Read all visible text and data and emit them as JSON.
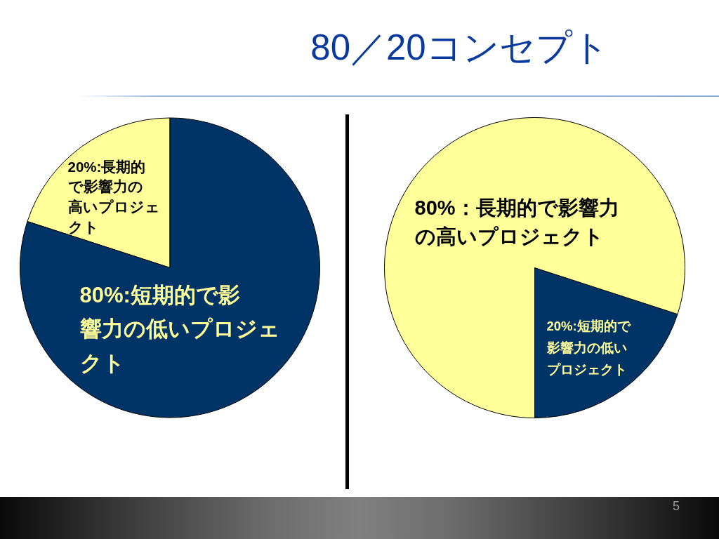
{
  "chart_data": [
    {
      "type": "pie",
      "categories": [
        "20%:長期的で影響力の高いプロジェクト",
        "80%:短期的で影響力の低いプロジェクト"
      ],
      "values": [
        20,
        80
      ],
      "colors": [
        "#ffff99",
        "#003366"
      ]
    },
    {
      "type": "pie",
      "title": "80／20コンセプト",
      "categories": [
        "20%:短期的で影響力の低いプロジェクト",
        "80%：長期的で影響力の高いプロジェクト"
      ],
      "values": [
        20,
        80
      ],
      "colors": [
        "#003366",
        "#ffff99"
      ],
      "annotations": [
        "5"
      ]
    }
  ]
}
